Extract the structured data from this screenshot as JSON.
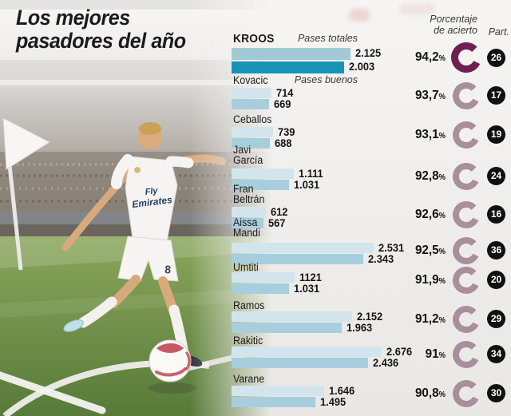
{
  "title": {
    "line1": "Los mejores",
    "line2": "pasadores del año"
  },
  "headers": {
    "porcentaje_line1": "Porcentaje",
    "porcentaje_line2": "de acierto",
    "part": "Part."
  },
  "legend": {
    "pases_totales": "Pases totales",
    "pases_buenos": "Pases buenos"
  },
  "misc": {
    "percent_sign": "%"
  },
  "colors": {
    "bar_totales": "#d3e5ec",
    "bar_buenos": "#a7cedd",
    "bar_totales_highlight": "#a3c9d6",
    "bar_buenos_highlight": "#1794b4",
    "donut": "#a98f9b",
    "donut_highlight": "#6e2150",
    "badge_bg": "#101010",
    "badge_text": "#ffffff",
    "title_text": "#1b1b1d"
  },
  "players": [
    {
      "name_lines": [
        "KROOS"
      ],
      "totales": "2.125",
      "buenos": "2.003",
      "totales_num": 2125,
      "buenos_num": 2003,
      "pct": "94,2",
      "part": "26",
      "highlight": true
    },
    {
      "name_lines": [
        "Kovacic"
      ],
      "totales": "714",
      "buenos": "669",
      "totales_num": 714,
      "buenos_num": 669,
      "pct": "93,7",
      "part": "17",
      "highlight": false
    },
    {
      "name_lines": [
        "Ceballos"
      ],
      "totales": "739",
      "buenos": "688",
      "totales_num": 739,
      "buenos_num": 688,
      "pct": "93,1",
      "part": "19",
      "highlight": false
    },
    {
      "name_lines": [
        "Javi",
        "García"
      ],
      "totales": "1.111",
      "buenos": "1.031",
      "totales_num": 1111,
      "buenos_num": 1031,
      "pct": "92,8",
      "part": "24",
      "highlight": false
    },
    {
      "name_lines": [
        "Fran",
        "Beltrán"
      ],
      "totales": "612",
      "buenos": "567",
      "totales_num": 612,
      "buenos_num": 567,
      "pct": "92,6",
      "part": "16",
      "highlight": false
    },
    {
      "name_lines": [
        "Aissa",
        "Mandi"
      ],
      "totales": "2.531",
      "buenos": "2.343",
      "totales_num": 2531,
      "buenos_num": 2343,
      "pct": "92,5",
      "part": "36",
      "highlight": false
    },
    {
      "name_lines": [
        "Umtiti"
      ],
      "totales": "1121",
      "buenos": "1.031",
      "totales_num": 1121,
      "buenos_num": 1031,
      "pct": "91,9",
      "part": "20",
      "highlight": false
    },
    {
      "name_lines": [
        "Ramos"
      ],
      "totales": "2.152",
      "buenos": "1.963",
      "totales_num": 2152,
      "buenos_num": 1963,
      "pct": "91,2",
      "part": "29",
      "highlight": false
    },
    {
      "name_lines": [
        "Rakitic"
      ],
      "totales": "2.676",
      "buenos": "2.436",
      "totales_num": 2676,
      "buenos_num": 2436,
      "pct": "91",
      "part": "34",
      "highlight": false
    },
    {
      "name_lines": [
        "Varane"
      ],
      "totales": "1.646",
      "buenos": "1.495",
      "totales_num": 1646,
      "buenos_num": 1495,
      "pct": "90,8",
      "part": "30",
      "highlight": false
    }
  ],
  "chart_data": {
    "type": "bar",
    "orientation": "horizontal",
    "title": "Los mejores pasadores del año",
    "categories": [
      "Kroos",
      "Kovacic",
      "Ceballos",
      "Javi García",
      "Fran Beltrán",
      "Aissa Mandi",
      "Umtiti",
      "Ramos",
      "Rakitic",
      "Varane"
    ],
    "series": [
      {
        "name": "Pases totales",
        "values": [
          2125,
          714,
          739,
          1111,
          612,
          2531,
          1121,
          2152,
          2676,
          1646
        ]
      },
      {
        "name": "Pases buenos",
        "values": [
          2003,
          669,
          688,
          1031,
          567,
          2343,
          1031,
          1963,
          2436,
          1495
        ]
      }
    ],
    "accuracy_pct": [
      94.2,
      93.7,
      93.1,
      92.8,
      92.6,
      92.5,
      91.9,
      91.2,
      91,
      90.8
    ],
    "accuracy_header": "Porcentaje de acierto",
    "matches_header": "Part.",
    "matches_played": [
      26,
      17,
      19,
      24,
      16,
      36,
      20,
      29,
      34,
      30
    ],
    "highlighted_category": "Kroos",
    "xlim": [
      0,
      2700
    ],
    "value_labels_shown": true,
    "grid": false,
    "legend_position": "inline-first-rows"
  }
}
